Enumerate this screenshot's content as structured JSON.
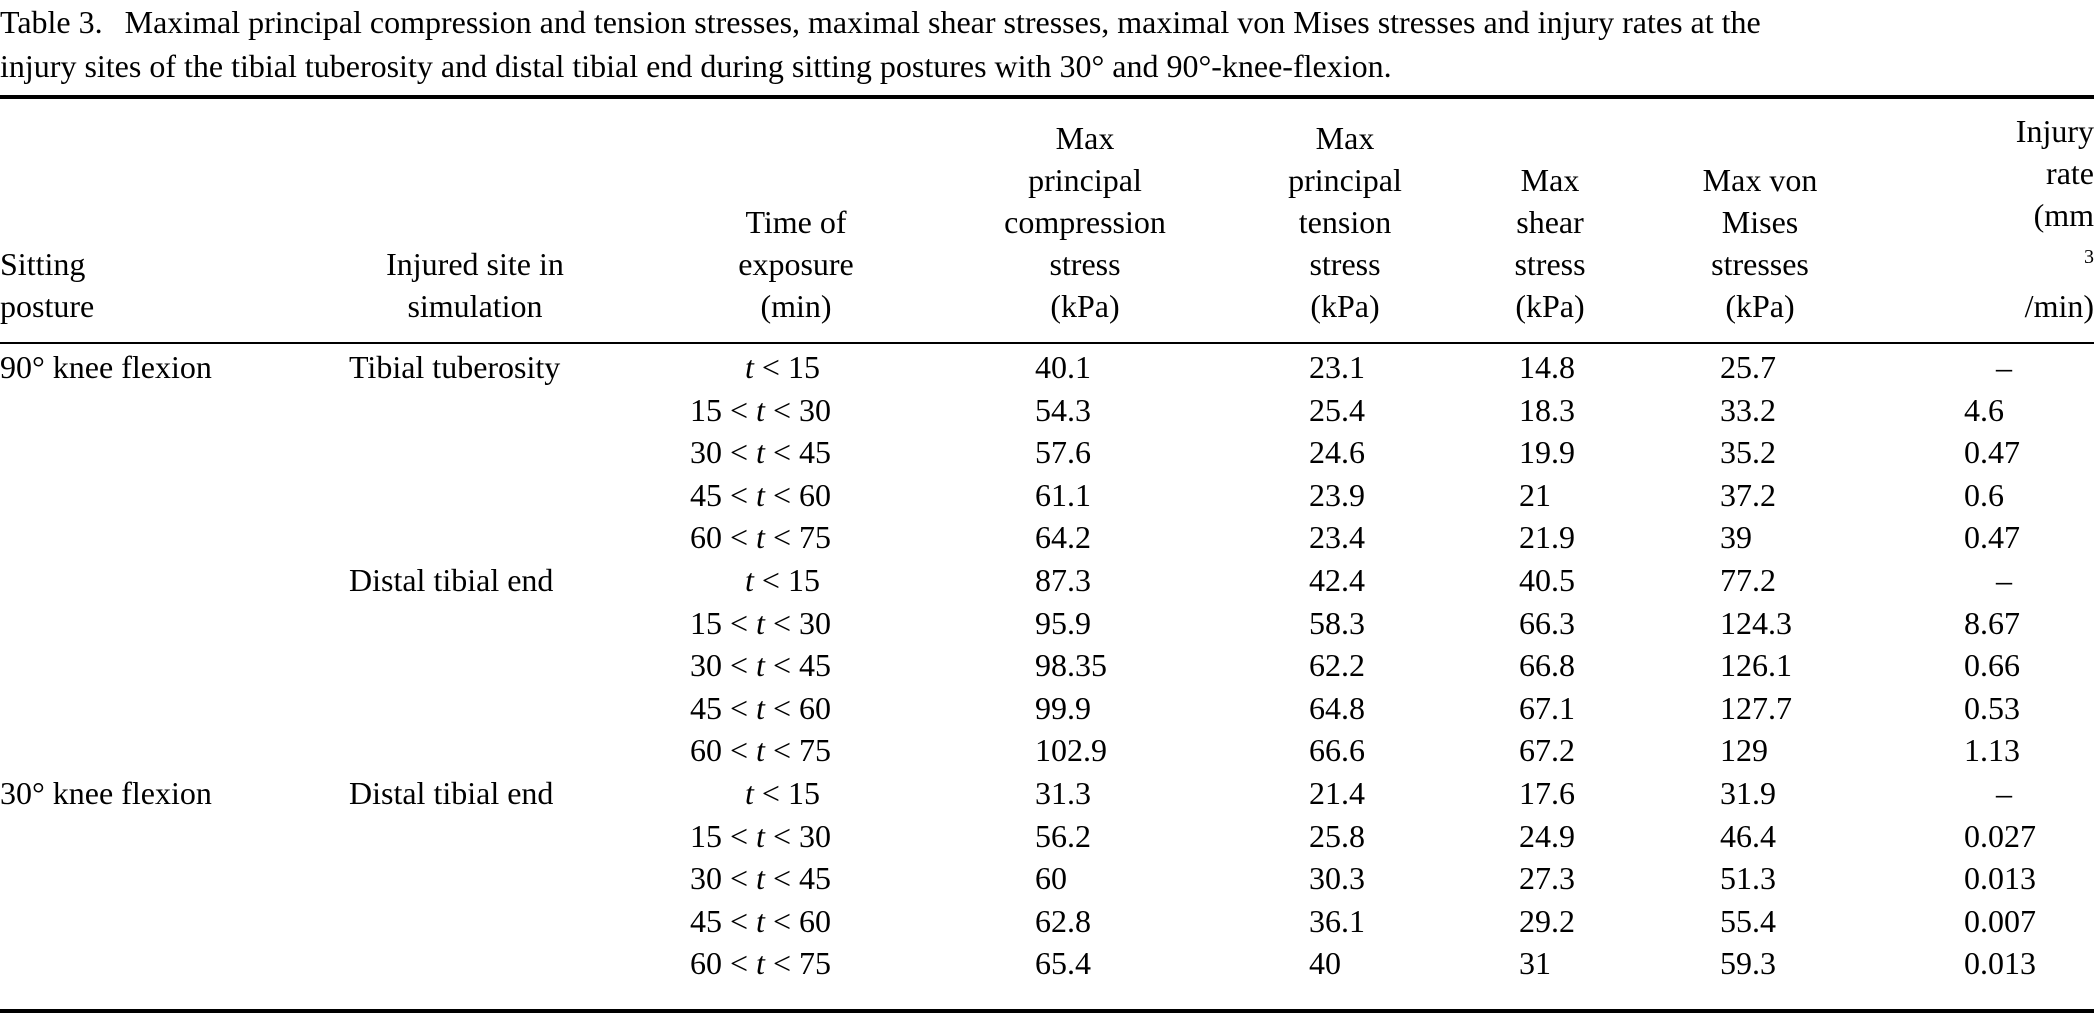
{
  "caption": {
    "label": "Table 3.",
    "line1": "Maximal principal compression and tension stresses, maximal shear stresses, maximal von Mises stresses and injury rates at the",
    "line2": "injury sites of the tibial tuberosity and distal tibial end during sitting postures with 30° and 90°-knee-flexion."
  },
  "headers": {
    "posture": [
      "Sitting",
      "posture"
    ],
    "site": [
      "Injured site in",
      "simulation"
    ],
    "time": [
      "Time of",
      "exposure",
      "(min)"
    ],
    "compression": [
      "Max",
      "principal",
      "compression",
      "stress",
      "(kPa)"
    ],
    "tension": [
      "Max",
      "principal",
      "tension",
      "stress",
      "(kPa)"
    ],
    "shear": [
      "Max",
      "shear",
      "stress",
      "(kPa)"
    ],
    "vonmises": [
      "Max von",
      "Mises",
      "stresses",
      "(kPa)"
    ],
    "rate_line1": "Injury",
    "rate_line2": "rate",
    "rate_unit_a": "(mm",
    "rate_unit_sup": "3",
    "rate_unit_b": "/min)"
  },
  "rows": [
    {
      "posture": "90° knee flexion",
      "site": "Tibial tuberosity",
      "time": "t < 15",
      "comp": "40.1",
      "tens": "23.1",
      "shear": "14.8",
      "vm": "25.7",
      "rate": "–"
    },
    {
      "posture": "",
      "site": "",
      "time": "15 < t < 30",
      "comp": "54.3",
      "tens": "25.4",
      "shear": "18.3",
      "vm": "33.2",
      "rate": "4.6"
    },
    {
      "posture": "",
      "site": "",
      "time": "30 < t < 45",
      "comp": "57.6",
      "tens": "24.6",
      "shear": "19.9",
      "vm": "35.2",
      "rate": "0.47"
    },
    {
      "posture": "",
      "site": "",
      "time": "45 < t < 60",
      "comp": "61.1",
      "tens": "23.9",
      "shear": "21",
      "vm": "37.2",
      "rate": "0.6"
    },
    {
      "posture": "",
      "site": "",
      "time": "60 < t < 75",
      "comp": "64.2",
      "tens": "23.4",
      "shear": "21.9",
      "vm": "39",
      "rate": "0.47"
    },
    {
      "posture": "",
      "site": "Distal tibial end",
      "time": "t < 15",
      "comp": "87.3",
      "tens": "42.4",
      "shear": "40.5",
      "vm": "77.2",
      "rate": "–"
    },
    {
      "posture": "",
      "site": "",
      "time": "15 < t < 30",
      "comp": "95.9",
      "tens": "58.3",
      "shear": "66.3",
      "vm": "124.3",
      "rate": "8.67"
    },
    {
      "posture": "",
      "site": "",
      "time": "30 < t < 45",
      "comp": "98.35",
      "tens": "62.2",
      "shear": "66.8",
      "vm": "126.1",
      "rate": "0.66"
    },
    {
      "posture": "",
      "site": "",
      "time": "45 < t < 60",
      "comp": "99.9",
      "tens": "64.8",
      "shear": "67.1",
      "vm": "127.7",
      "rate": "0.53"
    },
    {
      "posture": "",
      "site": "",
      "time": "60 < t < 75",
      "comp": "102.9",
      "tens": "66.6",
      "shear": "67.2",
      "vm": "129",
      "rate": "1.13"
    },
    {
      "posture": "30° knee flexion",
      "site": "Distal tibial end",
      "time": "t < 15",
      "comp": "31.3",
      "tens": "21.4",
      "shear": "17.6",
      "vm": "31.9",
      "rate": "–"
    },
    {
      "posture": "",
      "site": "",
      "time": "15 < t < 30",
      "comp": "56.2",
      "tens": "25.8",
      "shear": "24.9",
      "vm": "46.4",
      "rate": "0.027"
    },
    {
      "posture": "",
      "site": "",
      "time": "30 < t < 45",
      "comp": "60",
      "tens": "30.3",
      "shear": "27.3",
      "vm": "51.3",
      "rate": "0.013"
    },
    {
      "posture": "",
      "site": "",
      "time": "45 < t < 60",
      "comp": "62.8",
      "tens": "36.1",
      "shear": "29.2",
      "vm": "55.4",
      "rate": "0.007"
    },
    {
      "posture": "",
      "site": "",
      "time": "60 < t < 75",
      "comp": "65.4",
      "tens": "40",
      "shear": "31",
      "vm": "59.3",
      "rate": "0.013"
    }
  ]
}
